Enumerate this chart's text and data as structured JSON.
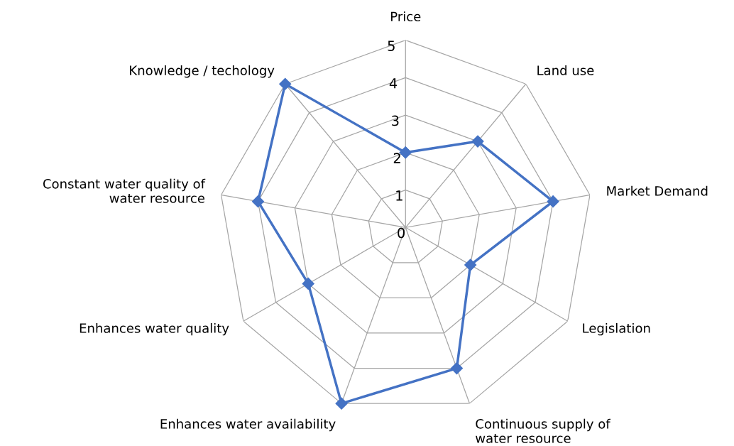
{
  "chart_data": {
    "type": "radar",
    "categories": [
      "Price",
      "Land use",
      "Market Demand",
      "Legislation",
      "Continuous supply of\nwater resource",
      "Enhances water availability",
      "Enhances water quality",
      "Constant water quality of\nwater resource",
      "Knowledge / techology"
    ],
    "series": [
      {
        "color": "#4472c4",
        "values": [
          2,
          3,
          4,
          2,
          4,
          5,
          3,
          4,
          5
        ]
      }
    ],
    "ylim": [
      0,
      5
    ],
    "yticks": [
      0,
      1,
      2,
      3,
      4,
      5
    ],
    "grid": true,
    "marker": "diamond",
    "line_style": "solid",
    "legend": false
  }
}
